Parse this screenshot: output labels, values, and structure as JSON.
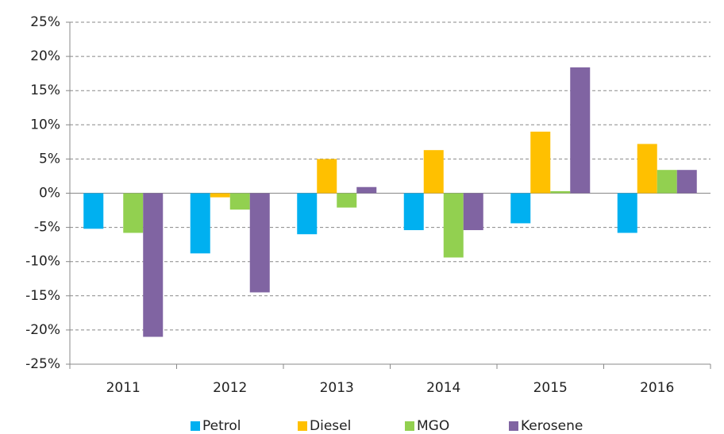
{
  "chart_data": {
    "type": "bar",
    "categories": [
      "2011",
      "2012",
      "2013",
      "2014",
      "2015",
      "2016"
    ],
    "series": [
      {
        "name": "Petrol",
        "color": "#00b0f0",
        "values": [
          -5.2,
          -8.8,
          -6,
          -5.4,
          -4.4,
          -5.8
        ]
      },
      {
        "name": "Diesel",
        "color": "#ffc000",
        "values": [
          0,
          -0.6,
          5,
          6.3,
          9.0,
          7.2
        ]
      },
      {
        "name": "MGO",
        "color": "#92d050",
        "values": [
          -5.8,
          -2.4,
          -2.1,
          -9.4,
          0.3,
          3.4
        ]
      },
      {
        "name": "Kerosene",
        "color": "#8064a2",
        "values": [
          -21,
          -14.5,
          0.9,
          -5.4,
          18.4,
          3.4
        ]
      }
    ],
    "ylim": [
      -25,
      25
    ],
    "yticks": [
      {
        "value": -25,
        "label": "-25%"
      },
      {
        "value": -20,
        "label": "-20%"
      },
      {
        "value": -15,
        "label": "-15%"
      },
      {
        "value": -10,
        "label": "-10%"
      },
      {
        "value": -5,
        "label": "-5%"
      },
      {
        "value": 0,
        "label": "0%"
      },
      {
        "value": 5,
        "label": "5%"
      },
      {
        "value": 10,
        "label": "10%"
      },
      {
        "value": 15,
        "label": "15%"
      },
      {
        "value": 20,
        "label": "20%"
      },
      {
        "value": 25,
        "label": "25%"
      }
    ],
    "grid": true,
    "legend": "bottom"
  }
}
